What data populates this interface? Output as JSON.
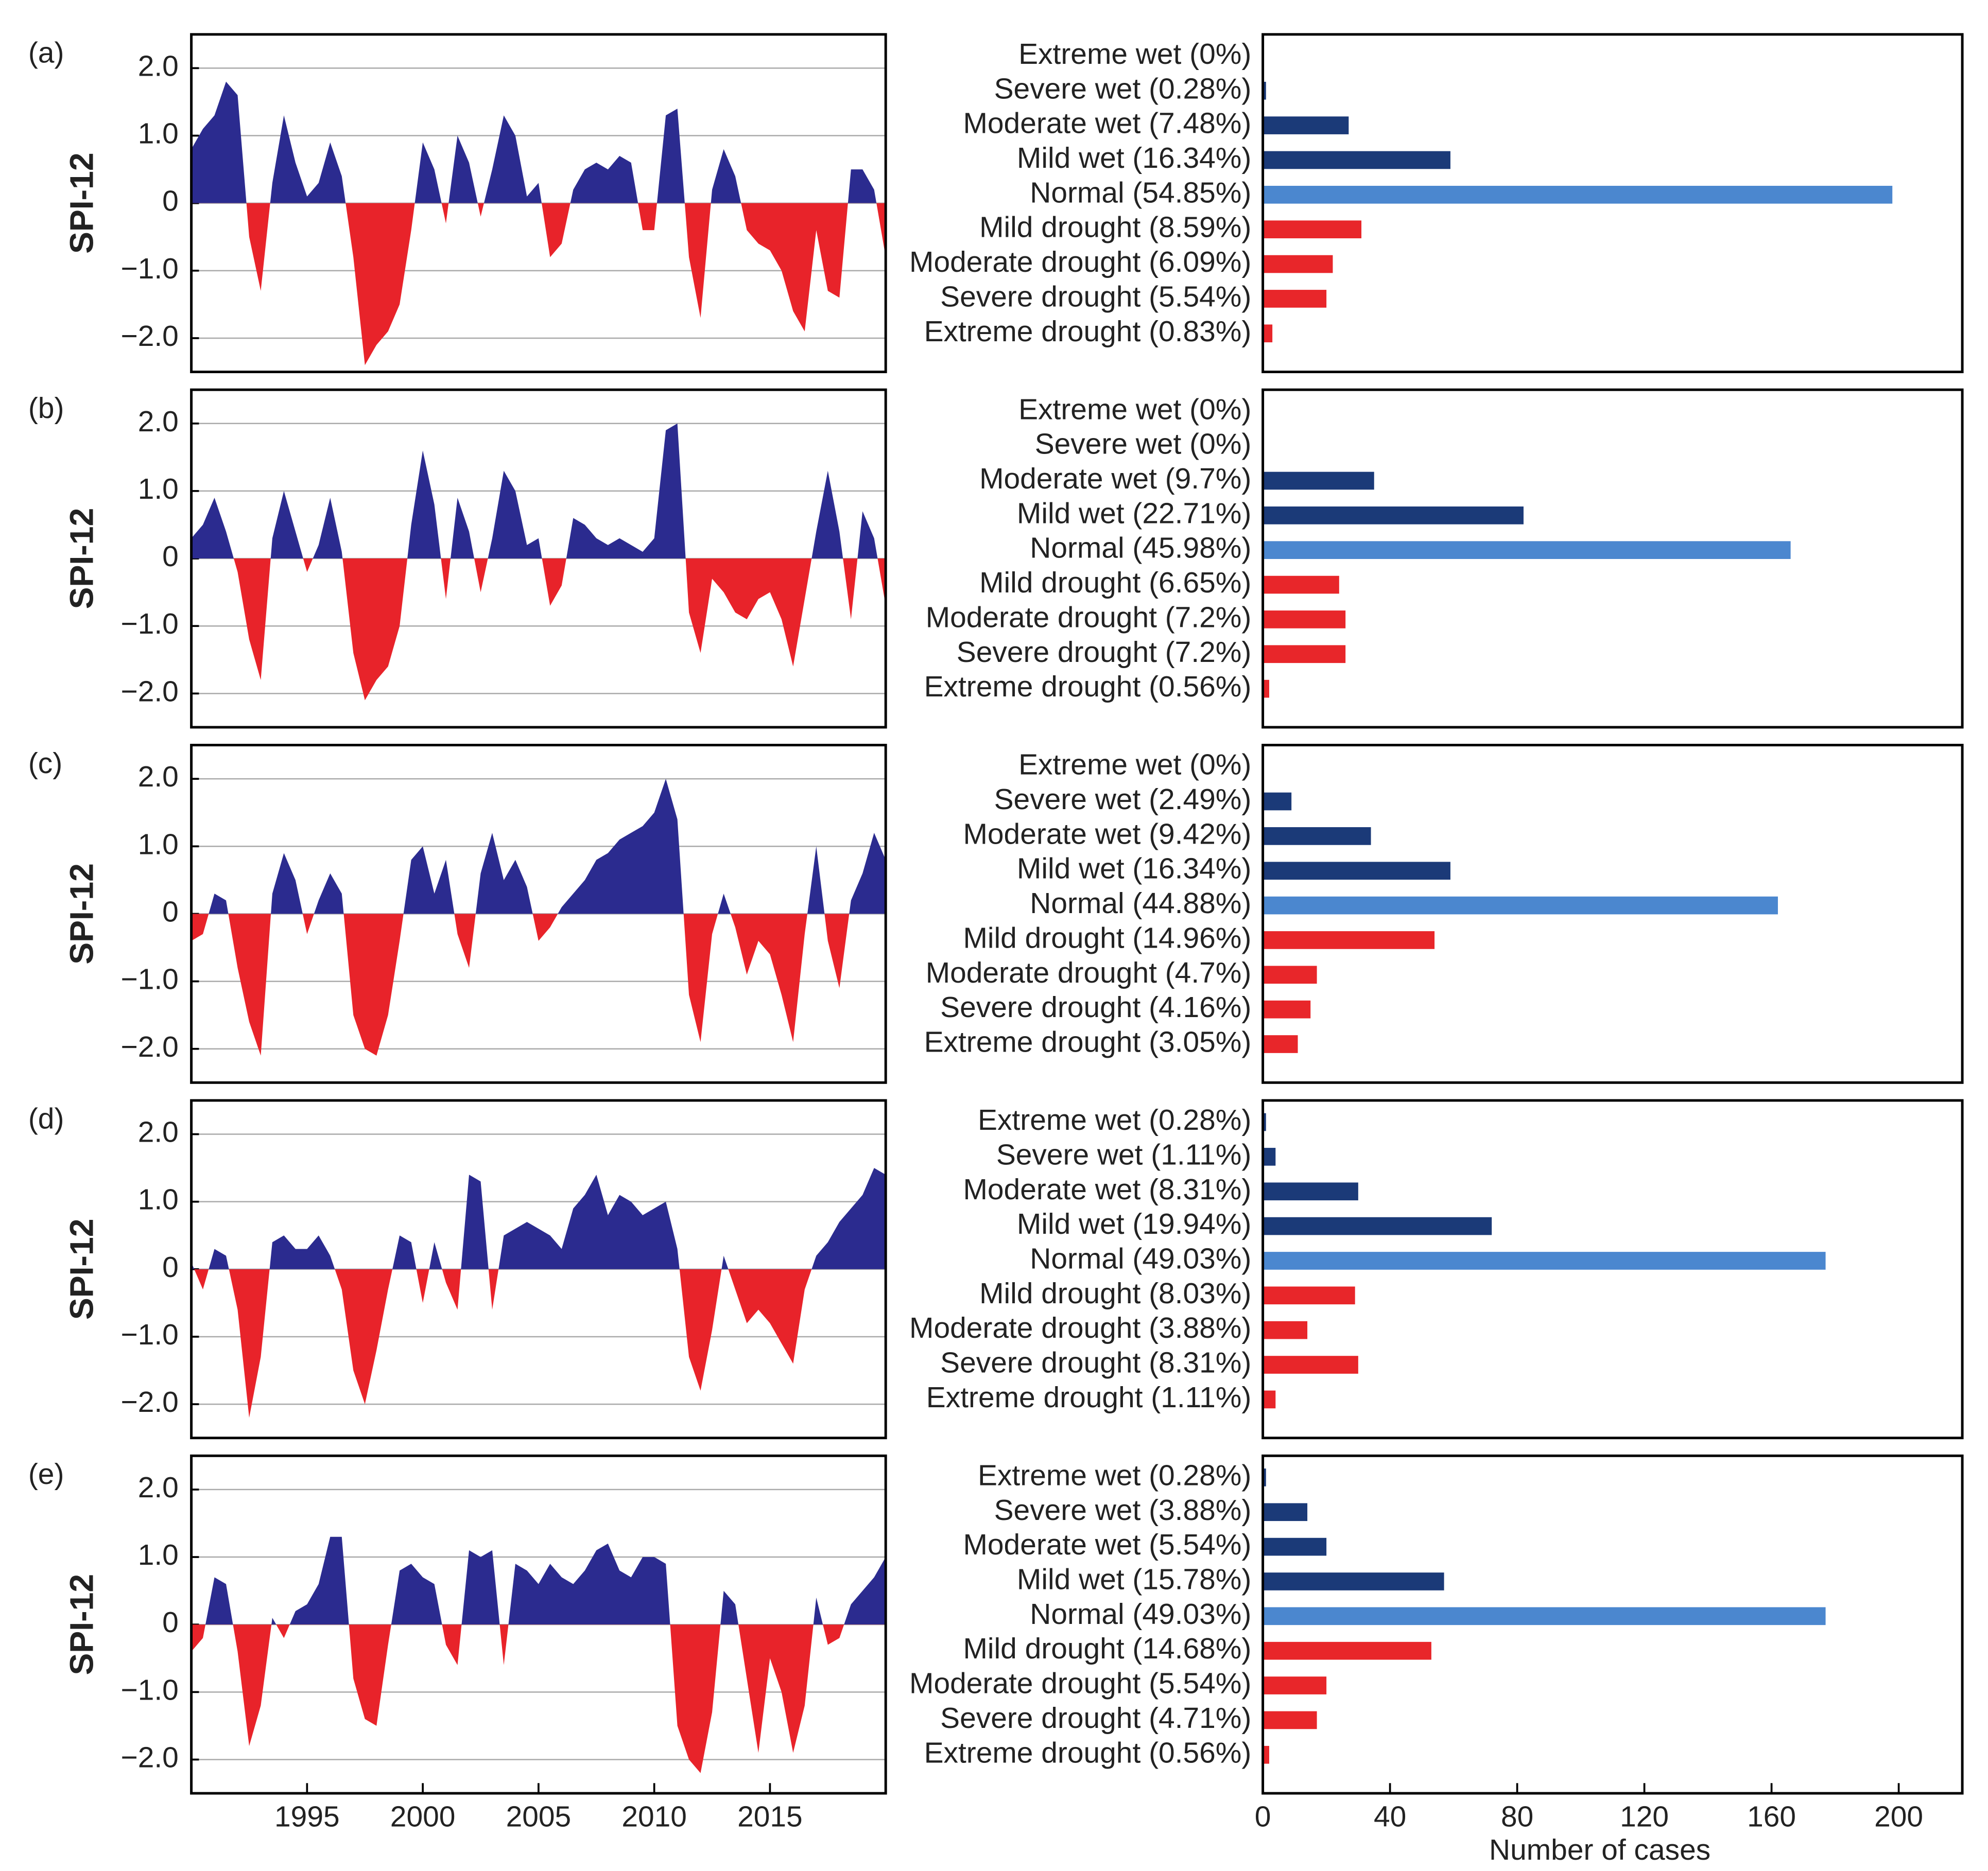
{
  "chart_data": [
    {
      "type": "area",
      "panel": "(a)",
      "ylabel": "SPI-12",
      "xlim": [
        1990,
        2020
      ],
      "ylim": [
        -2.5,
        2.5
      ],
      "yticks": [
        {
          "value": 2,
          "label": "2.0"
        },
        {
          "value": 1,
          "label": "1.0"
        },
        0,
        {
          "value": -1,
          "label": "−1.0"
        },
        {
          "value": -2,
          "label": "−2.0"
        }
      ],
      "grid": true,
      "pos_color": "#2b2b8f",
      "neg_color": "#e8232a",
      "x": [
        1990,
        1990.5,
        1991,
        1991.5,
        1992,
        1992.5,
        1993,
        1993.5,
        1994,
        1994.5,
        1995,
        1995.5,
        1996,
        1996.5,
        1997,
        1997.5,
        1998,
        1998.5,
        1999,
        1999.5,
        2000,
        2000.5,
        2001,
        2001.5,
        2002,
        2002.5,
        2003,
        2003.5,
        2004,
        2004.5,
        2005,
        2005.5,
        2006,
        2006.5,
        2007,
        2007.5,
        2008,
        2008.5,
        2009,
        2009.5,
        2010,
        2010.5,
        2011,
        2011.5,
        2012,
        2012.5,
        2013,
        2013.5,
        2014,
        2014.5,
        2015,
        2015.5,
        2016,
        2016.5,
        2017,
        2017.5,
        2018,
        2018.5,
        2019,
        2019.5,
        2020
      ],
      "values": [
        0.8,
        1.1,
        1.3,
        1.8,
        1.6,
        -0.5,
        -1.3,
        0.3,
        1.3,
        0.6,
        0.1,
        0.3,
        0.9,
        0.4,
        -0.8,
        -2.4,
        -2.1,
        -1.9,
        -1.5,
        -0.4,
        0.9,
        0.5,
        -0.3,
        1.0,
        0.6,
        -0.2,
        0.5,
        1.3,
        1.0,
        0.1,
        0.3,
        -0.8,
        -0.6,
        0.2,
        0.5,
        0.6,
        0.5,
        0.7,
        0.6,
        -0.4,
        -0.4,
        1.3,
        1.4,
        -0.8,
        -1.7,
        0.2,
        0.8,
        0.4,
        -0.4,
        -0.6,
        -0.7,
        -1.0,
        -1.6,
        -1.9,
        -0.4,
        -1.3,
        -1.4,
        0.5,
        0.5,
        0.2,
        -0.8
      ]
    },
    {
      "type": "bar",
      "orientation": "horizontal",
      "xlim": [
        0,
        220
      ],
      "categories": [
        "Extreme wet (0%)",
        "Severe wet (0.28%)",
        "Moderate wet (7.48%)",
        "Mild wet (16.34%)",
        "Normal (54.85%)",
        "Mild drought (8.59%)",
        "Moderate drought (6.09%)",
        "Severe drought (5.54%)",
        "Extreme drought (0.83%)"
      ],
      "values": [
        0,
        1,
        27,
        59,
        198,
        31,
        22,
        20,
        3
      ],
      "colors": [
        "#1b3a78",
        "#1b3a78",
        "#1b3a78",
        "#1b3a78",
        "#4b87cf",
        "#e8262a",
        "#e8262a",
        "#e8262a",
        "#e8262a"
      ]
    },
    {
      "type": "area",
      "panel": "(b)",
      "ylabel": "SPI-12",
      "xlim": [
        1990,
        2020
      ],
      "ylim": [
        -2.5,
        2.5
      ],
      "yticks": [
        {
          "value": 2,
          "label": "2.0"
        },
        {
          "value": 1,
          "label": "1.0"
        },
        0,
        {
          "value": -1,
          "label": "−1.0"
        },
        {
          "value": -2,
          "label": "−2.0"
        }
      ],
      "grid": true,
      "pos_color": "#2b2b8f",
      "neg_color": "#e8232a",
      "x": [
        1990,
        1990.5,
        1991,
        1991.5,
        1992,
        1992.5,
        1993,
        1993.5,
        1994,
        1994.5,
        1995,
        1995.5,
        1996,
        1996.5,
        1997,
        1997.5,
        1998,
        1998.5,
        1999,
        1999.5,
        2000,
        2000.5,
        2001,
        2001.5,
        2002,
        2002.5,
        2003,
        2003.5,
        2004,
        2004.5,
        2005,
        2005.5,
        2006,
        2006.5,
        2007,
        2007.5,
        2008,
        2008.5,
        2009,
        2009.5,
        2010,
        2010.5,
        2011,
        2011.5,
        2012,
        2012.5,
        2013,
        2013.5,
        2014,
        2014.5,
        2015,
        2015.5,
        2016,
        2016.5,
        2017,
        2017.5,
        2018,
        2018.5,
        2019,
        2019.5,
        2020
      ],
      "values": [
        0.3,
        0.5,
        0.9,
        0.4,
        -0.2,
        -1.2,
        -1.8,
        0.3,
        1.0,
        0.4,
        -0.2,
        0.2,
        0.9,
        0.1,
        -1.4,
        -2.1,
        -1.8,
        -1.6,
        -1.0,
        0.5,
        1.6,
        0.8,
        -0.6,
        0.9,
        0.4,
        -0.5,
        0.3,
        1.3,
        1.0,
        0.2,
        0.3,
        -0.7,
        -0.4,
        0.6,
        0.5,
        0.3,
        0.2,
        0.3,
        0.2,
        0.1,
        0.3,
        1.9,
        2.0,
        -0.8,
        -1.4,
        -0.3,
        -0.5,
        -0.8,
        -0.9,
        -0.6,
        -0.5,
        -0.9,
        -1.6,
        -0.6,
        0.4,
        1.3,
        0.4,
        -0.9,
        0.7,
        0.3,
        -0.7
      ]
    },
    {
      "type": "bar",
      "orientation": "horizontal",
      "xlim": [
        0,
        220
      ],
      "categories": [
        "Extreme wet (0%)",
        "Severe wet (0%)",
        "Moderate wet (9.7%)",
        "Mild wet (22.71%)",
        "Normal (45.98%)",
        "Mild drought (6.65%)",
        "Moderate drought (7.2%)",
        "Severe drought (7.2%)",
        "Extreme drought (0.56%)"
      ],
      "values": [
        0,
        0,
        35,
        82,
        166,
        24,
        26,
        26,
        2
      ],
      "colors": [
        "#1b3a78",
        "#1b3a78",
        "#1b3a78",
        "#1b3a78",
        "#4b87cf",
        "#e8262a",
        "#e8262a",
        "#e8262a",
        "#e8262a"
      ]
    },
    {
      "type": "area",
      "panel": "(c)",
      "ylabel": "SPI-12",
      "xlim": [
        1990,
        2020
      ],
      "ylim": [
        -2.5,
        2.5
      ],
      "yticks": [
        {
          "value": 2,
          "label": "2.0"
        },
        {
          "value": 1,
          "label": "1.0"
        },
        0,
        {
          "value": -1,
          "label": "−1.0"
        },
        {
          "value": -2,
          "label": "−2.0"
        }
      ],
      "grid": true,
      "pos_color": "#2b2b8f",
      "neg_color": "#e8232a",
      "x": [
        1990,
        1990.5,
        1991,
        1991.5,
        1992,
        1992.5,
        1993,
        1993.5,
        1994,
        1994.5,
        1995,
        1995.5,
        1996,
        1996.5,
        1997,
        1997.5,
        1998,
        1998.5,
        1999,
        1999.5,
        2000,
        2000.5,
        2001,
        2001.5,
        2002,
        2002.5,
        2003,
        2003.5,
        2004,
        2004.5,
        2005,
        2005.5,
        2006,
        2006.5,
        2007,
        2007.5,
        2008,
        2008.5,
        2009,
        2009.5,
        2010,
        2010.5,
        2011,
        2011.5,
        2012,
        2012.5,
        2013,
        2013.5,
        2014,
        2014.5,
        2015,
        2015.5,
        2016,
        2016.5,
        2017,
        2017.5,
        2018,
        2018.5,
        2019,
        2019.5,
        2020
      ],
      "values": [
        -0.4,
        -0.3,
        0.3,
        0.2,
        -0.8,
        -1.6,
        -2.1,
        0.3,
        0.9,
        0.5,
        -0.3,
        0.2,
        0.6,
        0.3,
        -1.5,
        -2.0,
        -2.1,
        -1.5,
        -0.4,
        0.8,
        1.0,
        0.3,
        0.8,
        -0.3,
        -0.8,
        0.6,
        1.2,
        0.5,
        0.8,
        0.4,
        -0.4,
        -0.2,
        0.1,
        0.3,
        0.5,
        0.8,
        0.9,
        1.1,
        1.2,
        1.3,
        1.5,
        2.0,
        1.4,
        -1.2,
        -1.9,
        -0.3,
        0.3,
        -0.2,
        -0.9,
        -0.4,
        -0.6,
        -1.2,
        -1.9,
        -0.3,
        1.0,
        -0.4,
        -1.1,
        0.2,
        0.6,
        1.2,
        0.8
      ]
    },
    {
      "type": "bar",
      "orientation": "horizontal",
      "xlim": [
        0,
        220
      ],
      "categories": [
        "Extreme wet (0%)",
        "Severe wet (2.49%)",
        "Moderate wet (9.42%)",
        "Mild wet (16.34%)",
        "Normal (44.88%)",
        "Mild drought (14.96%)",
        "Moderate drought  (4.7%)",
        "Severe drought (4.16%)",
        "Extreme drought (3.05%)"
      ],
      "values": [
        0,
        9,
        34,
        59,
        162,
        54,
        17,
        15,
        11
      ],
      "colors": [
        "#1b3a78",
        "#1b3a78",
        "#1b3a78",
        "#1b3a78",
        "#4b87cf",
        "#e8262a",
        "#e8262a",
        "#e8262a",
        "#e8262a"
      ]
    },
    {
      "type": "area",
      "panel": "(d)",
      "ylabel": "SPI-12",
      "xlim": [
        1990,
        2020
      ],
      "ylim": [
        -2.5,
        2.5
      ],
      "yticks": [
        {
          "value": 2,
          "label": "2.0"
        },
        {
          "value": 1,
          "label": "1.0"
        },
        0,
        {
          "value": -1,
          "label": "−1.0"
        },
        {
          "value": -2,
          "label": "−2.0"
        }
      ],
      "grid": true,
      "pos_color": "#2b2b8f",
      "neg_color": "#e8232a",
      "x": [
        1990,
        1990.5,
        1991,
        1991.5,
        1992,
        1992.5,
        1993,
        1993.5,
        1994,
        1994.5,
        1995,
        1995.5,
        1996,
        1996.5,
        1997,
        1997.5,
        1998,
        1998.5,
        1999,
        1999.5,
        2000,
        2000.5,
        2001,
        2001.5,
        2002,
        2002.5,
        2003,
        2003.5,
        2004,
        2004.5,
        2005,
        2005.5,
        2006,
        2006.5,
        2007,
        2007.5,
        2008,
        2008.5,
        2009,
        2009.5,
        2010,
        2010.5,
        2011,
        2011.5,
        2012,
        2012.5,
        2013,
        2013.5,
        2014,
        2014.5,
        2015,
        2015.5,
        2016,
        2016.5,
        2017,
        2017.5,
        2018,
        2018.5,
        2019,
        2019.5,
        2020
      ],
      "values": [
        0.1,
        -0.3,
        0.3,
        0.2,
        -0.6,
        -2.2,
        -1.3,
        0.4,
        0.5,
        0.3,
        0.3,
        0.5,
        0.2,
        -0.3,
        -1.5,
        -2.0,
        -1.2,
        -0.3,
        0.5,
        0.4,
        -0.5,
        0.4,
        -0.2,
        -0.6,
        1.4,
        1.3,
        -0.6,
        0.5,
        0.6,
        0.7,
        0.6,
        0.5,
        0.3,
        0.9,
        1.1,
        1.4,
        0.8,
        1.1,
        1.0,
        0.8,
        0.9,
        1.0,
        0.3,
        -1.3,
        -1.8,
        -0.9,
        0.2,
        -0.3,
        -0.8,
        -0.6,
        -0.8,
        -1.1,
        -1.4,
        -0.3,
        0.2,
        0.4,
        0.7,
        0.9,
        1.1,
        1.5,
        1.4
      ]
    },
    {
      "type": "bar",
      "orientation": "horizontal",
      "xlim": [
        0,
        220
      ],
      "categories": [
        "Extreme wet (0.28%)",
        "Severe wet (1.11%)",
        "Moderate wet (8.31%)",
        "Mild wet (19.94%)",
        "Normal (49.03%)",
        "Mild drought  (8.03%)",
        "Moderate drought (3.88%)",
        "Severe drought (8.31%)",
        "Extreme drought (1.11%)"
      ],
      "values": [
        1,
        4,
        30,
        72,
        177,
        29,
        14,
        30,
        4
      ],
      "colors": [
        "#1b3a78",
        "#1b3a78",
        "#1b3a78",
        "#1b3a78",
        "#4b87cf",
        "#e8262a",
        "#e8262a",
        "#e8262a",
        "#e8262a"
      ]
    },
    {
      "type": "area",
      "panel": "(e)",
      "ylabel": "SPI-12",
      "xlim": [
        1990,
        2020
      ],
      "ylim": [
        -2.5,
        2.5
      ],
      "yticks": [
        {
          "value": 2,
          "label": "2.0"
        },
        {
          "value": 1,
          "label": "1.0"
        },
        0,
        {
          "value": -1,
          "label": "−1.0"
        },
        {
          "value": -2,
          "label": "−2.0"
        }
      ],
      "grid": true,
      "xticks": [
        1995,
        2000,
        2005,
        2010,
        2015
      ],
      "pos_color": "#2b2b8f",
      "neg_color": "#e8232a",
      "x": [
        1990,
        1990.5,
        1991,
        1991.5,
        1992,
        1992.5,
        1993,
        1993.5,
        1994,
        1994.5,
        1995,
        1995.5,
        1996,
        1996.5,
        1997,
        1997.5,
        1998,
        1998.5,
        1999,
        1999.5,
        2000,
        2000.5,
        2001,
        2001.5,
        2002,
        2002.5,
        2003,
        2003.5,
        2004,
        2004.5,
        2005,
        2005.5,
        2006,
        2006.5,
        2007,
        2007.5,
        2008,
        2008.5,
        2009,
        2009.5,
        2010,
        2010.5,
        2011,
        2011.5,
        2012,
        2012.5,
        2013,
        2013.5,
        2014,
        2014.5,
        2015,
        2015.5,
        2016,
        2016.5,
        2017,
        2017.5,
        2018,
        2018.5,
        2019,
        2019.5,
        2020
      ],
      "values": [
        -0.4,
        -0.2,
        0.7,
        0.6,
        -0.4,
        -1.8,
        -1.2,
        0.1,
        -0.2,
        0.2,
        0.3,
        0.6,
        1.3,
        1.3,
        -0.8,
        -1.4,
        -1.5,
        -0.3,
        0.8,
        0.9,
        0.7,
        0.6,
        -0.3,
        -0.6,
        1.1,
        1.0,
        1.1,
        -0.6,
        0.9,
        0.8,
        0.6,
        0.9,
        0.7,
        0.6,
        0.8,
        1.1,
        1.2,
        0.8,
        0.7,
        1.0,
        1.0,
        0.9,
        -1.5,
        -2.0,
        -2.2,
        -1.3,
        0.5,
        0.3,
        -0.8,
        -1.9,
        -0.5,
        -1.0,
        -1.9,
        -1.2,
        0.4,
        -0.3,
        -0.2,
        0.3,
        0.5,
        0.7,
        1.0
      ]
    },
    {
      "type": "bar",
      "orientation": "horizontal",
      "xlim": [
        0,
        220
      ],
      "xticks": [
        0,
        40,
        80,
        120,
        160,
        200
      ],
      "xlabel": "Number of cases",
      "categories": [
        "Extreme wet (0.28%)",
        "Severe wet (3.88%)",
        "Moderate wet (5.54%)",
        "Mild wet (15.78%)",
        "Normal (49.03%)",
        "Mild drought (14.68%)",
        "Moderate drought (5.54%)",
        "Severe drought (4.71%)",
        "Extreme drought (0.56%)"
      ],
      "values": [
        1,
        14,
        20,
        57,
        177,
        53,
        20,
        17,
        2
      ],
      "colors": [
        "#1b3a78",
        "#1b3a78",
        "#1b3a78",
        "#1b3a78",
        "#4b87cf",
        "#e8262a",
        "#e8262a",
        "#e8262a",
        "#e8262a"
      ]
    }
  ]
}
